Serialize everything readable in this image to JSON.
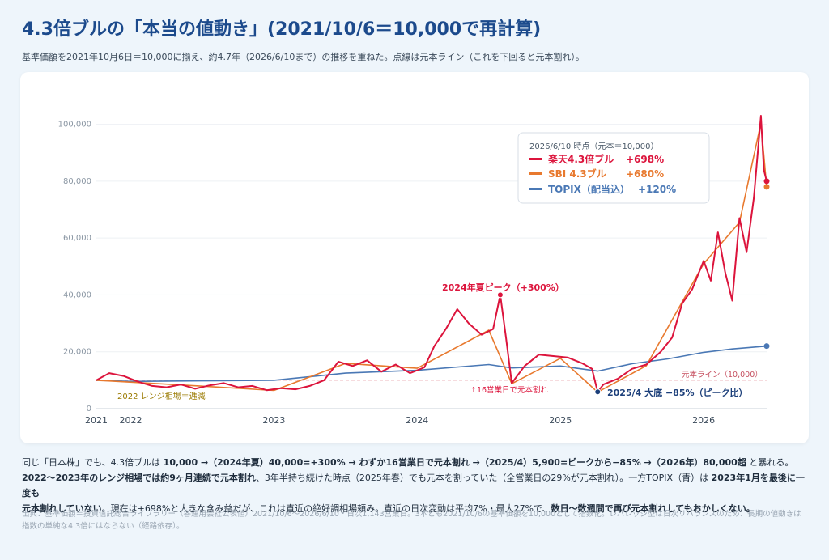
{
  "header": {
    "title": "4.3倍ブルの「本当の値動き」(2021/10/6＝10,000で再計算)",
    "subtitle": "基準価額を2021年10月6日＝10,000に揃え、約4.7年（2026/6/10まで）の推移を重ねた。点線は元本ライン（これを下回ると元本割れ）。"
  },
  "legend": {
    "heading": "2026/6/10 時点（元本＝10,000）",
    "items": [
      {
        "name": "楽天4.3倍ブル",
        "value": "+698%",
        "color": "#dc143c"
      },
      {
        "name": "SBI 4.3ブル",
        "value": "+680%",
        "color": "#e8792e"
      },
      {
        "name": "TOPIX（配当込）",
        "value": "+120%",
        "color": "#4a78b5"
      }
    ]
  },
  "annotations": {
    "peak": "2024年夏ピーク（+300%）",
    "breach": "↑16営業日で元本割れ",
    "bottom": "2025/4 大底 −85%（ピーク比）",
    "range": "2022 レンジ相場＝逓減",
    "principal": "元本ライン（10,000）"
  },
  "chart_data": {
    "type": "line",
    "ylim": [
      0,
      105000
    ],
    "yticks": [
      "0",
      "20,000",
      "40,000",
      "60,000",
      "80,000",
      "100,000"
    ],
    "ytick_values": [
      0,
      20000,
      40000,
      60000,
      80000,
      100000
    ],
    "xticks": [
      "2021",
      "2022",
      "2023",
      "2024",
      "2025",
      "2026"
    ],
    "xtick_values": [
      2021.76,
      2022.0,
      2023.0,
      2024.0,
      2025.0,
      2026.0
    ],
    "xlim": [
      2021.76,
      2026.44
    ],
    "principal": 10000,
    "series": [
      {
        "name": "楽天4.3倍ブル",
        "color": "#dc143c",
        "x": [
          2021.76,
          2021.85,
          2021.95,
          2022.05,
          2022.15,
          2022.25,
          2022.35,
          2022.45,
          2022.55,
          2022.65,
          2022.75,
          2022.85,
          2022.95,
          2023.05,
          2023.15,
          2023.25,
          2023.35,
          2023.45,
          2023.55,
          2023.65,
          2023.75,
          2023.85,
          2023.95,
          2024.05,
          2024.12,
          2024.2,
          2024.28,
          2024.36,
          2024.45,
          2024.53,
          2024.58,
          2024.62,
          2024.66,
          2024.75,
          2024.85,
          2024.95,
          2025.05,
          2025.15,
          2025.22,
          2025.26,
          2025.3,
          2025.4,
          2025.5,
          2025.6,
          2025.7,
          2025.78,
          2025.85,
          2025.92,
          2026.0,
          2026.05,
          2026.1,
          2026.15,
          2026.2,
          2026.25,
          2026.3,
          2026.35,
          2026.4,
          2026.42,
          2026.44
        ],
        "values": [
          10000,
          12500,
          11500,
          9500,
          8000,
          7500,
          8500,
          7000,
          8200,
          9000,
          7500,
          8000,
          6500,
          7200,
          6800,
          8000,
          10000,
          16500,
          15000,
          17000,
          13000,
          15500,
          12500,
          14500,
          22000,
          28000,
          35000,
          30000,
          26000,
          28000,
          40000,
          25000,
          9000,
          15000,
          19000,
          18500,
          18000,
          16000,
          14000,
          5900,
          8500,
          10500,
          14000,
          15500,
          20000,
          25000,
          37000,
          42000,
          52000,
          45000,
          62000,
          48000,
          38000,
          67000,
          55000,
          74000,
          103000,
          84000,
          80000
        ]
      },
      {
        "name": "SBI 4.3ブル",
        "color": "#e8792e",
        "x": [
          2021.76,
          2022.5,
          2023.0,
          2023.5,
          2024.0,
          2024.5,
          2024.66,
          2025.0,
          2025.26,
          2025.6,
          2026.0,
          2026.25,
          2026.4,
          2026.44
        ],
        "values": [
          10000,
          7900,
          6400,
          15900,
          14200,
          27600,
          8800,
          17700,
          5800,
          15100,
          51000,
          65500,
          100500,
          78000
        ]
      },
      {
        "name": "TOPIX（配当込）",
        "color": "#4a78b5",
        "x": [
          2021.76,
          2022.0,
          2022.5,
          2023.0,
          2023.5,
          2024.0,
          2024.5,
          2024.66,
          2025.0,
          2025.26,
          2025.5,
          2025.75,
          2026.0,
          2026.2,
          2026.44
        ],
        "values": [
          10000,
          9600,
          9800,
          10000,
          12500,
          13500,
          15500,
          14300,
          15000,
          13200,
          15800,
          17500,
          19800,
          21000,
          22000
        ]
      }
    ],
    "markers": [
      {
        "label": "2024年夏ピーク（+300%）",
        "x": 2024.58,
        "y": 40000
      },
      {
        "label": "2025/4 大底 −85%（ピーク比）",
        "x": 2025.26,
        "y": 5900
      }
    ]
  },
  "body_text": {
    "p1a": "同じ「日本株」でも、4.3倍ブルは ",
    "p1b": "10,000 →（2024年夏）40,000=+300% → わずか16営業日で元本割れ →（2025/4）5,900=ピークから−85% →（2026年）80,000超",
    "p1c": " と暴れる。",
    "p2a": "2022〜2023年のレンジ相場では約9ヶ月連続で元本割れ",
    "p2b": "、3年半持ち続けた時点（2025年春）でも元本を割っていた（全営業日の29%が元本割れ）。一方TOPIX（青）は ",
    "p2c": "2023年1月を最後に一度も",
    "p3a": "元本割れしていない",
    "p3b": "。現在は+698%と大きな含み益だが、これは直近の絶好調相場頼み。直近の日次変動は平均7%・最大27%で、",
    "p3c": "数日〜数週間で再び元本割れしてもおかしくない。"
  },
  "source": {
    "line1": "出典：基準価額＝投資信託総合ライブラリー（各運用会社公表値）2021/10/6〜2026/6/10・日次1,143営業日。3本とも2021/10/6の基準価額を10,000として指数化。レバレッジ型は日次リバランスのため、長期の値動きは",
    "line2": "指数の単純な4.3倍にはならない（経路依存）。"
  }
}
